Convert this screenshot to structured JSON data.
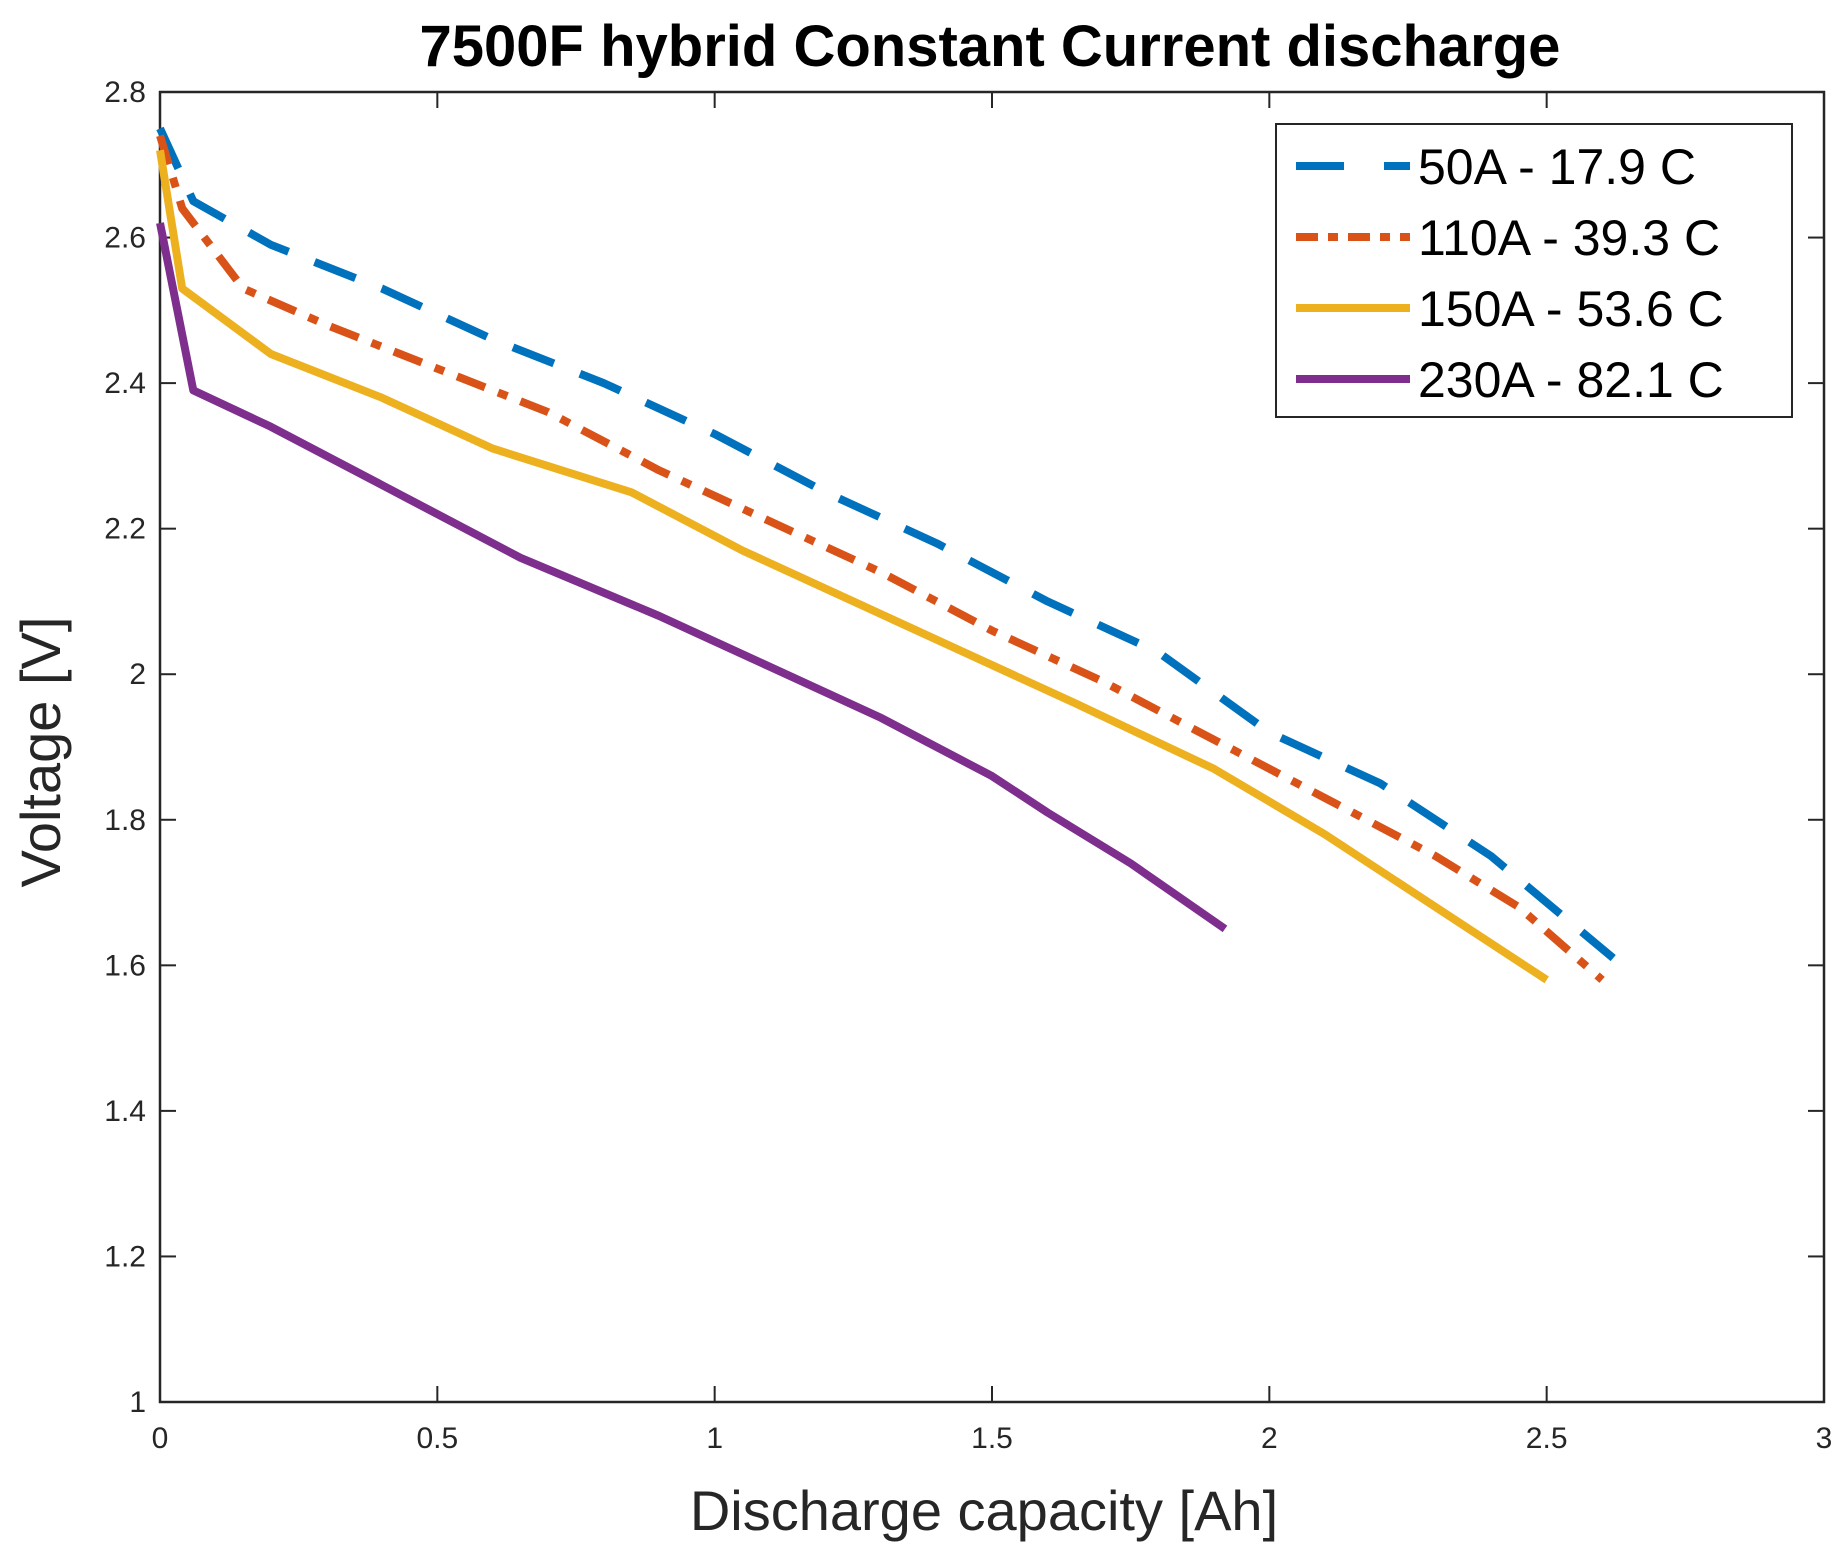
{
  "chart_data": {
    "type": "line",
    "title": "7500F hybrid Constant Current discharge",
    "xlabel": "Discharge capacity [Ah]",
    "ylabel": "Voltage [V]",
    "xlim": [
      0,
      3
    ],
    "ylim": [
      1,
      2.8
    ],
    "xticks": [
      0,
      0.5,
      1,
      1.5,
      2,
      2.5,
      3
    ],
    "xtick_labels": [
      "0",
      "0.5",
      "1",
      "1.5",
      "2",
      "2.5",
      "3"
    ],
    "yticks": [
      1,
      1.2,
      1.4,
      1.6,
      1.8,
      2,
      2.2,
      2.4,
      2.6,
      2.8
    ],
    "ytick_labels": [
      "1",
      "1.2",
      "1.4",
      "1.6",
      "1.8",
      "2",
      "2.2",
      "2.4",
      "2.6",
      "2.8"
    ],
    "grid": false,
    "legend_position": "top-right",
    "series": [
      {
        "name": "50A - 17.9 C",
        "color": "#0072BD",
        "style": "dashed",
        "x": [
          0,
          0.06,
          0.2,
          0.4,
          0.6,
          0.8,
          1.0,
          1.2,
          1.4,
          1.6,
          1.8,
          2.0,
          2.2,
          2.4,
          2.62
        ],
        "y": [
          2.75,
          2.65,
          2.59,
          2.53,
          2.46,
          2.4,
          2.33,
          2.25,
          2.18,
          2.1,
          2.03,
          1.92,
          1.85,
          1.75,
          1.61
        ]
      },
      {
        "name": "110A - 39.3 C",
        "color": "#D95319",
        "style": "dashdot",
        "x": [
          0,
          0.04,
          0.15,
          0.3,
          0.5,
          0.7,
          0.9,
          1.1,
          1.3,
          1.5,
          1.7,
          1.9,
          2.1,
          2.3,
          2.45,
          2.6
        ],
        "y": [
          2.74,
          2.64,
          2.53,
          2.48,
          2.42,
          2.36,
          2.28,
          2.21,
          2.14,
          2.06,
          1.99,
          1.91,
          1.83,
          1.75,
          1.68,
          1.58
        ]
      },
      {
        "name": "150A - 53.6 C",
        "color": "#EDB120",
        "style": "solid",
        "x": [
          0,
          0.04,
          0.2,
          0.4,
          0.6,
          0.85,
          1.05,
          1.25,
          1.45,
          1.65,
          1.9,
          2.1,
          2.3,
          2.5
        ],
        "y": [
          2.72,
          2.53,
          2.44,
          2.38,
          2.31,
          2.25,
          2.17,
          2.1,
          2.03,
          1.96,
          1.87,
          1.78,
          1.68,
          1.58
        ]
      },
      {
        "name": "230A - 82.1 C",
        "color": "#7E2F8E",
        "style": "solid",
        "x": [
          0,
          0.06,
          0.2,
          0.4,
          0.65,
          0.9,
          1.1,
          1.3,
          1.5,
          1.6,
          1.75,
          1.92
        ],
        "y": [
          2.62,
          2.39,
          2.34,
          2.26,
          2.16,
          2.08,
          2.01,
          1.94,
          1.86,
          1.81,
          1.74,
          1.65
        ]
      }
    ]
  }
}
